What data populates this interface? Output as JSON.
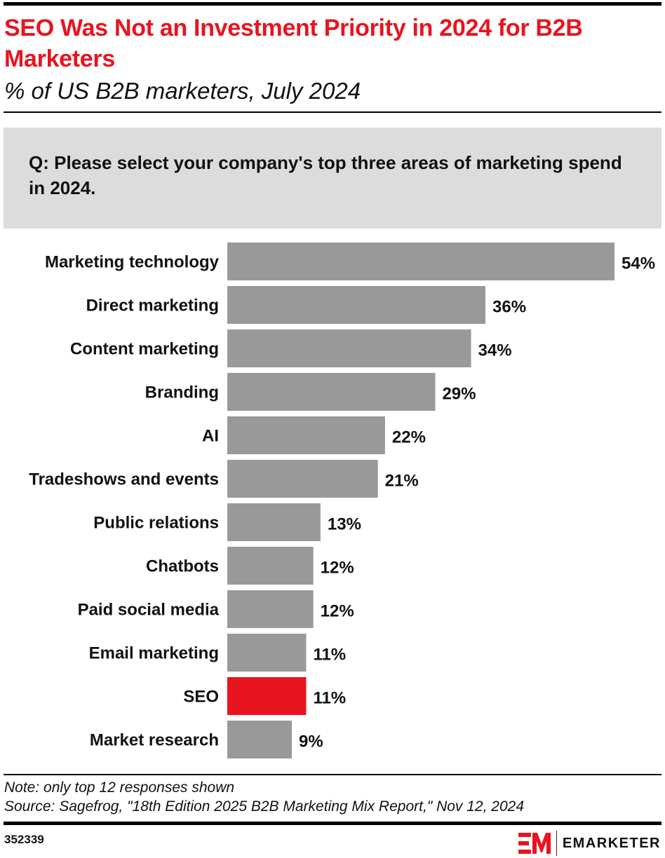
{
  "header": {
    "title": "SEO Was Not an Investment Priority in 2024 for B2B Marketers",
    "subtitle": "% of US B2B marketers, July 2024",
    "question": "Q: Please select your company's top three areas of marketing spend in 2024."
  },
  "chart_data": {
    "type": "bar",
    "orientation": "horizontal",
    "categories": [
      "Marketing technology",
      "Direct marketing",
      "Content marketing",
      "Branding",
      "AI",
      "Tradeshows and events",
      "Public relations",
      "Chatbots",
      "Paid social media",
      "Email marketing",
      "SEO",
      "Market research"
    ],
    "values": [
      54,
      36,
      34,
      29,
      22,
      21,
      13,
      12,
      12,
      11,
      11,
      9
    ],
    "data_labels": [
      "54%",
      "36%",
      "34%",
      "29%",
      "22%",
      "21%",
      "13%",
      "12%",
      "12%",
      "11%",
      "11%",
      "9%"
    ],
    "highlight_category": "SEO",
    "colors": {
      "bar": "#999999",
      "highlight": "#e8141f"
    },
    "xlim": [
      0,
      54
    ],
    "grid": false,
    "legend": "none"
  },
  "footer": {
    "note": "Note: only top 12 responses shown",
    "source": "Source: Sagefrog, \"18th Edition 2025 B2B Marketing Mix Report,\" Nov 12, 2024",
    "chart_id": "352339",
    "brand": "EMARKETER",
    "brand_mark": "EM"
  }
}
